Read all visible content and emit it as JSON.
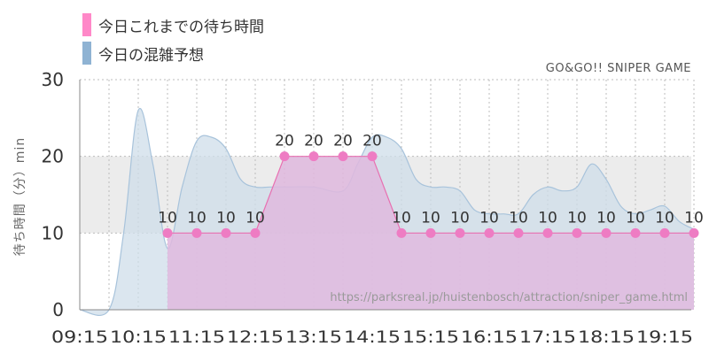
{
  "legend": {
    "items": [
      {
        "label": "今日これまでの待ち時間",
        "color": "#ff88c8"
      },
      {
        "label": "今日の混雑予想",
        "color": "#8fb3d3"
      }
    ]
  },
  "watermark": "GO&GO!! SNIPER GAME",
  "source_url": "https://parksreal.jp/huistenbosch/attraction/sniper_game.html",
  "colors": {
    "actual_fill": "#dfb9de",
    "actual_line": "#e86fb0",
    "actual_point": "#ee7cc3",
    "forecast_fill": "#cfdde9",
    "forecast_line": "#a8c3db",
    "band": "#ececec",
    "grid": "#bdbdbd"
  },
  "chart_data": {
    "type": "area",
    "xlabel": "",
    "ylabel": "待ち時間（分）min",
    "ylim": [
      0,
      30
    ],
    "yticks": [
      0,
      10,
      20,
      30
    ],
    "xticks": [
      "09:15",
      "10:15",
      "11:15",
      "12:15",
      "13:15",
      "14:15",
      "15:15",
      "16:15",
      "17:15",
      "18:15",
      "19:15"
    ],
    "x": [
      "09:15",
      "09:45",
      "10:15",
      "10:45",
      "11:15",
      "11:45",
      "12:15",
      "12:45",
      "13:15",
      "13:45",
      "14:15",
      "14:45",
      "15:15",
      "15:45",
      "16:15",
      "16:45",
      "17:15",
      "17:45",
      "18:15",
      "18:45",
      "19:15",
      "19:45"
    ],
    "grid": true,
    "band": [
      10,
      20
    ],
    "series": [
      {
        "name": "今日これまでの待ち時間",
        "type": "area",
        "x": [
          "10:45",
          "11:15",
          "11:45",
          "12:15",
          "12:45",
          "13:15",
          "13:45",
          "14:15",
          "14:45",
          "15:15",
          "15:45",
          "16:15",
          "16:45",
          "17:15",
          "17:45",
          "18:15",
          "18:45",
          "19:15",
          "19:45"
        ],
        "values": [
          10,
          10,
          10,
          10,
          20,
          20,
          20,
          20,
          10,
          10,
          10,
          10,
          10,
          10,
          10,
          10,
          10,
          10,
          10
        ],
        "labels": [
          "10",
          "10",
          "10",
          "10",
          "20",
          "20",
          "20",
          "20",
          "10",
          "10",
          "10",
          "10",
          "10",
          "10",
          "10",
          "10",
          "10",
          "10",
          "10"
        ]
      },
      {
        "name": "今日の混雑予想",
        "type": "area",
        "x": [
          "09:15",
          "09:45",
          "10:00",
          "10:15",
          "10:30",
          "10:45",
          "11:00",
          "11:15",
          "11:30",
          "11:45",
          "12:00",
          "12:15",
          "12:30",
          "12:45",
          "13:15",
          "13:45",
          "14:00",
          "14:15",
          "14:30",
          "14:45",
          "15:00",
          "15:15",
          "15:30",
          "15:45",
          "16:00",
          "16:15",
          "16:30",
          "16:45",
          "17:00",
          "17:15",
          "17:30",
          "17:45",
          "18:00",
          "18:15",
          "18:30",
          "18:45",
          "19:00",
          "19:15",
          "19:30",
          "19:45"
        ],
        "values": [
          0,
          0,
          10,
          26,
          19,
          8,
          16,
          22,
          22.5,
          21,
          17,
          16,
          16,
          16,
          16,
          15.5,
          19,
          22.5,
          22.5,
          21,
          17,
          16,
          16,
          15.5,
          13,
          12.5,
          12.5,
          12.5,
          15,
          16,
          15.5,
          16,
          19,
          17,
          13.5,
          12.5,
          13,
          13.5,
          11.5,
          10.5
        ]
      }
    ]
  }
}
